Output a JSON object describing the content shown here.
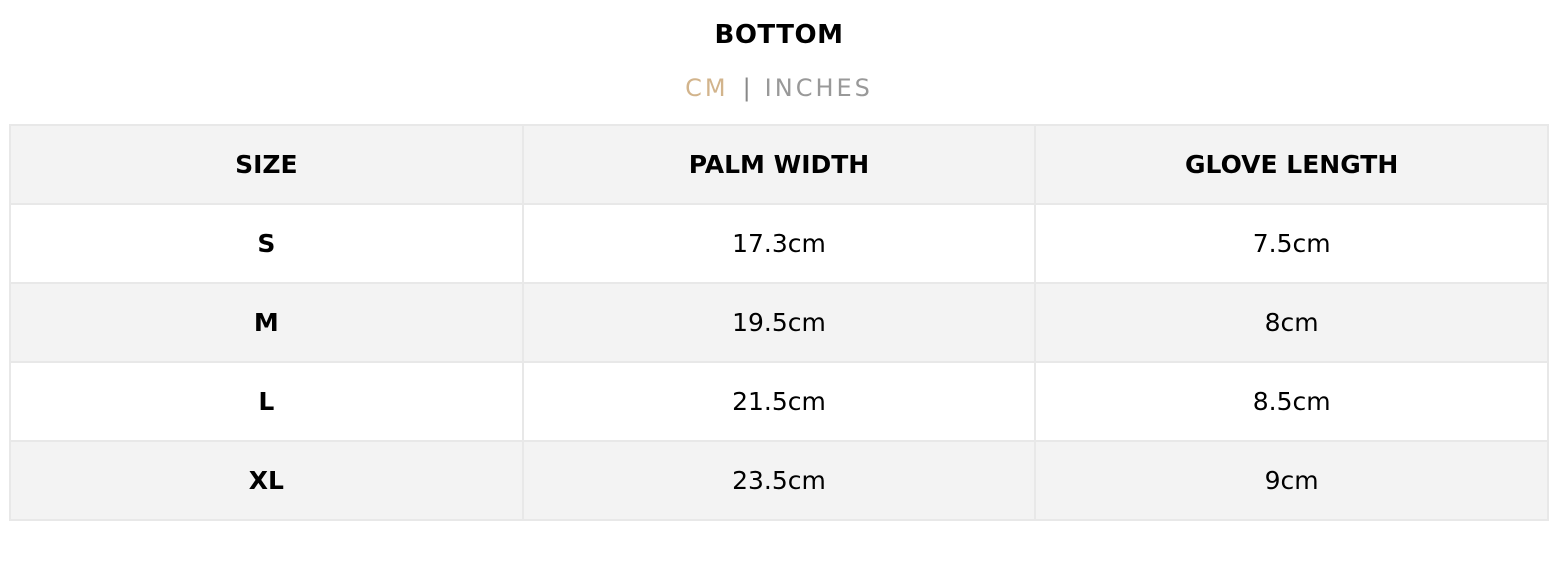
{
  "title": "BOTTOM",
  "units": {
    "cm": "CM",
    "separator": "|",
    "inches": "INCHES",
    "active": "CM",
    "active_color": "#d2b48c"
  },
  "table": {
    "headers": [
      "SIZE",
      "PALM WIDTH",
      "GLOVE LENGTH"
    ],
    "rows": [
      [
        "S",
        "17.3cm",
        "7.5cm"
      ],
      [
        "M",
        "19.5cm",
        "8cm"
      ],
      [
        "L",
        "21.5cm",
        "8.5cm"
      ],
      [
        "XL",
        "23.5cm",
        "9cm"
      ]
    ]
  }
}
